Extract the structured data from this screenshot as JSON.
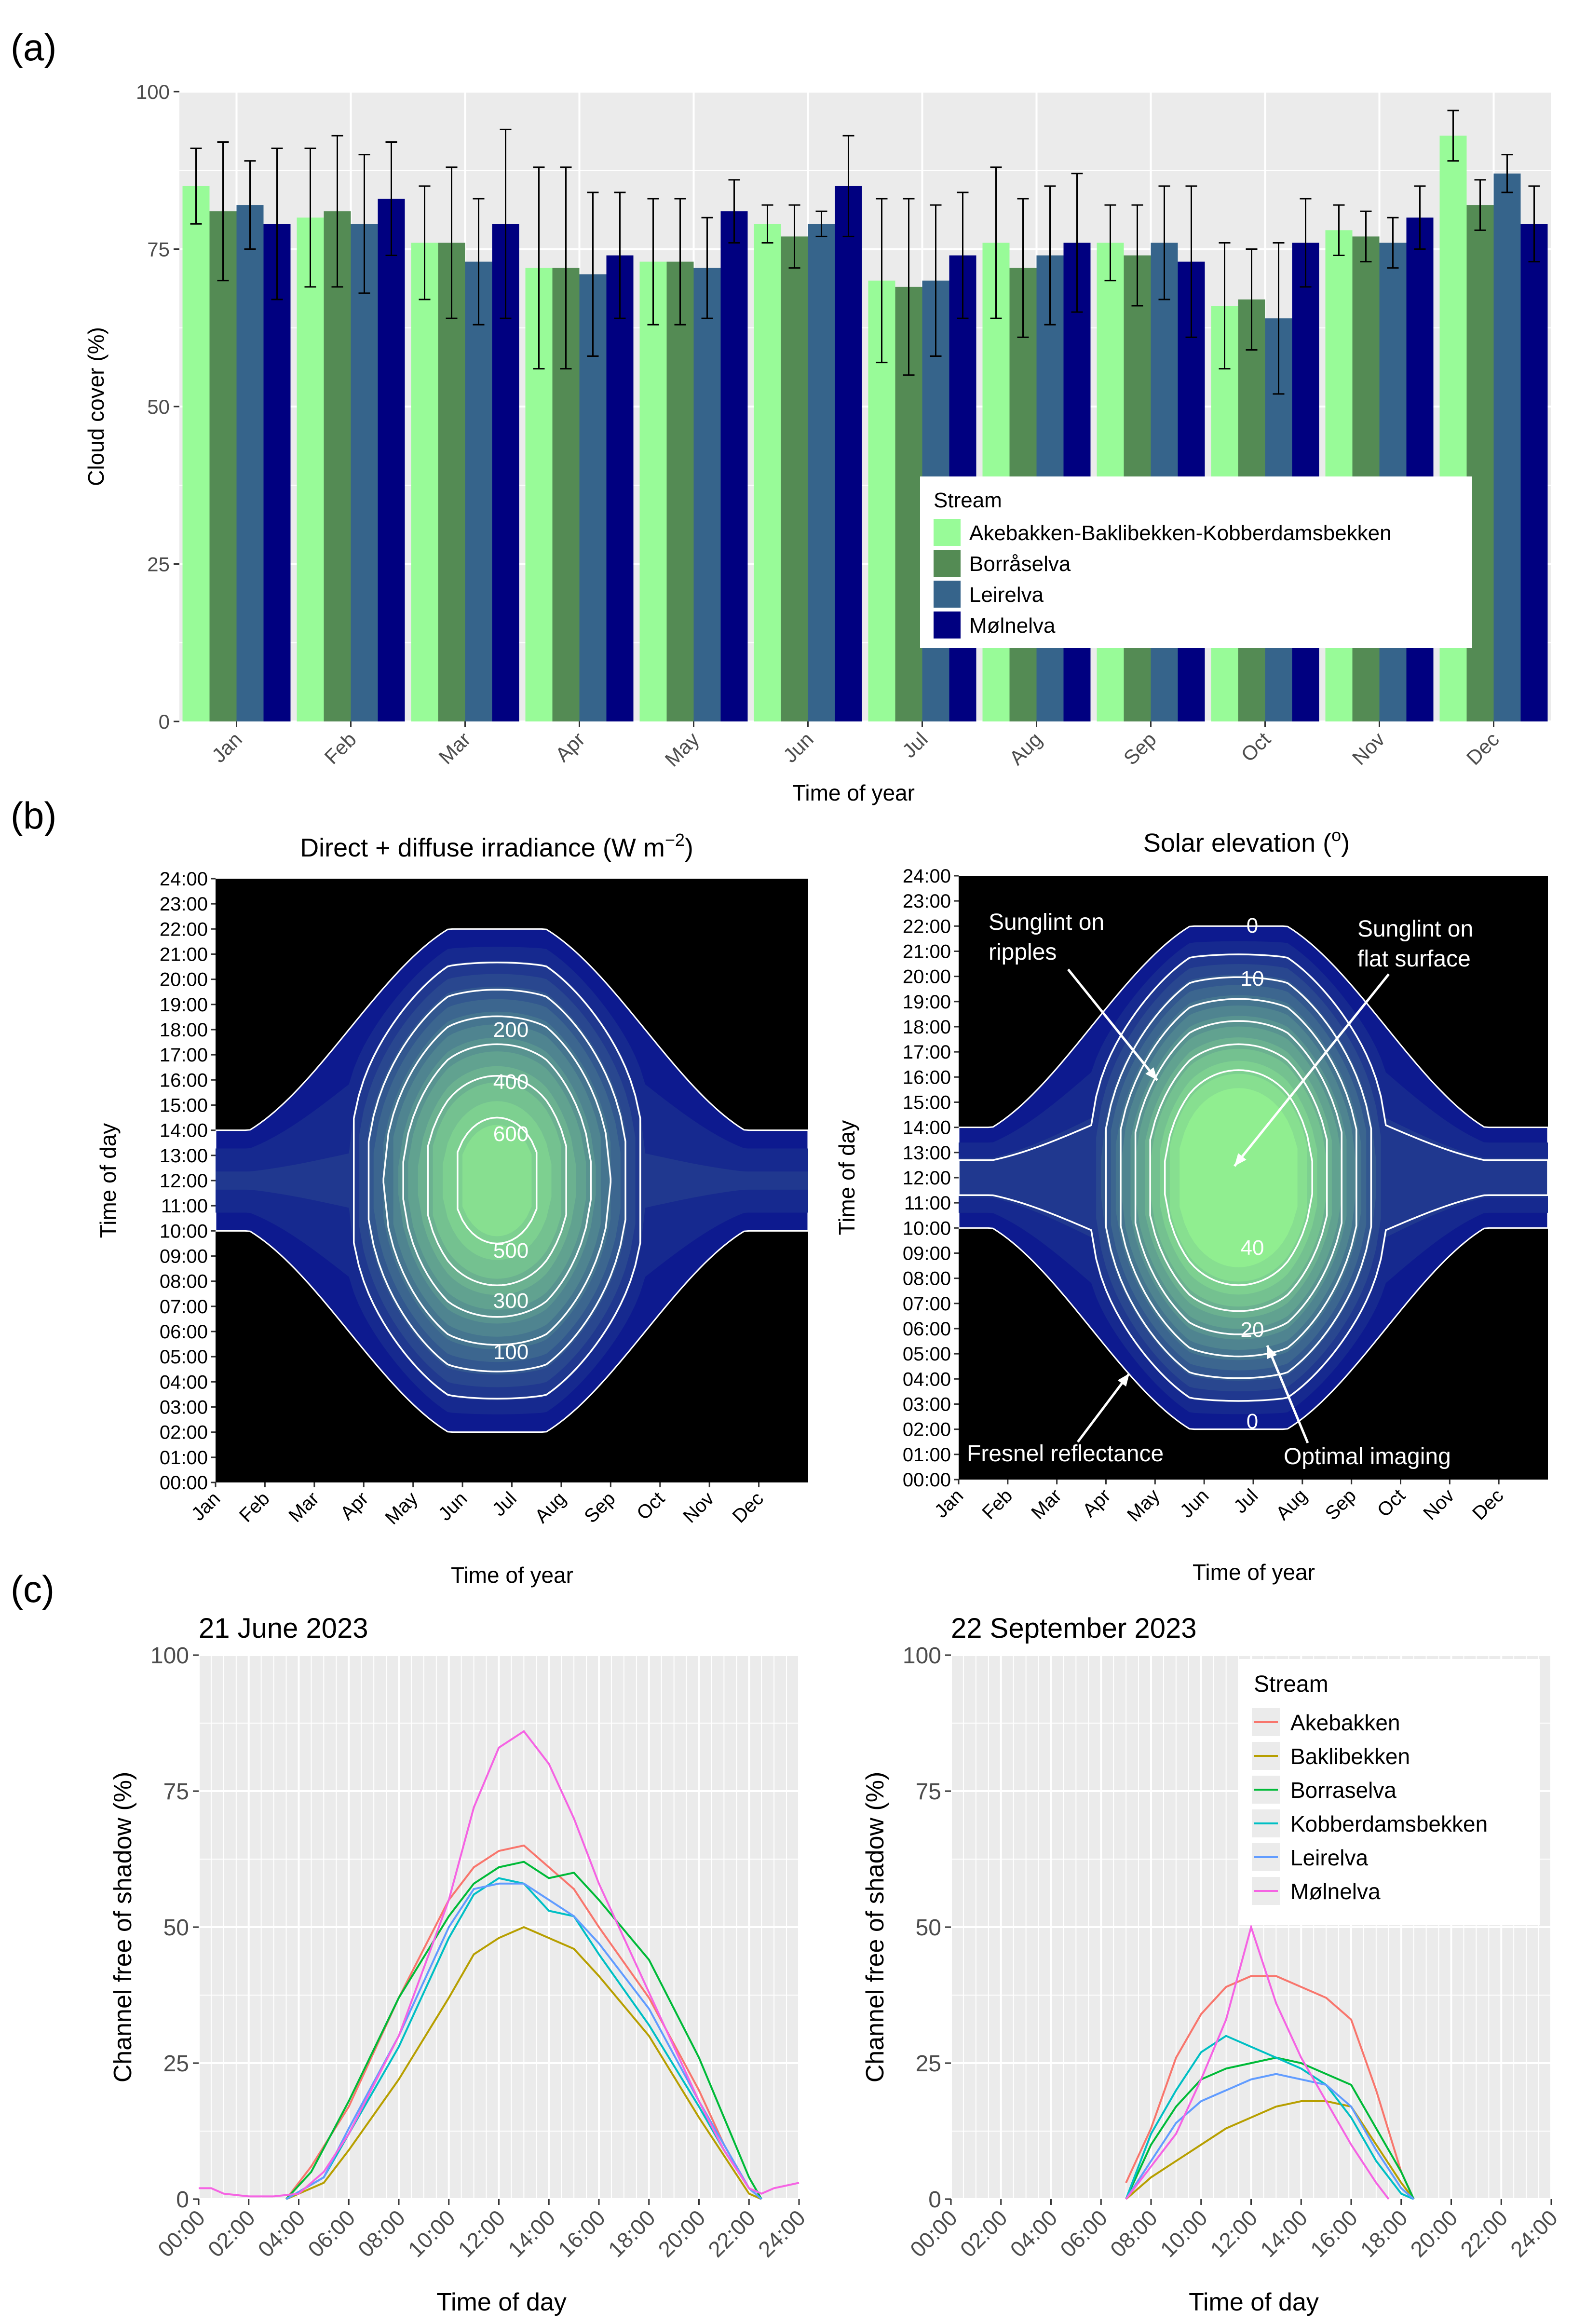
{
  "panel_labels": [
    "(a)",
    "(b)",
    "(c)"
  ],
  "colors": {
    "panel_bg": "#ebebeb",
    "grid": "#ffffff",
    "bar_series": [
      "#98fb98",
      "#548b54",
      "#36648b",
      "#000080"
    ],
    "line_series": [
      "#f8766d",
      "#b79f00",
      "#00ba38",
      "#00bfc4",
      "#619cff",
      "#f564e3"
    ],
    "heat_low": "#0d1a8f",
    "heat_high": "#90ee90"
  },
  "chart_data": [
    {
      "id": "a",
      "type": "bar",
      "title": "",
      "xlabel": "Time of year",
      "ylabel": "Cloud cover (%)",
      "ylim": [
        0,
        100
      ],
      "yticks": [
        "0",
        "25",
        "50",
        "75",
        "100"
      ],
      "categories": [
        "Jan",
        "Feb",
        "Mar",
        "Apr",
        "May",
        "Jun",
        "Jul",
        "Aug",
        "Sep",
        "Oct",
        "Nov",
        "Dec"
      ],
      "legend": {
        "title": "Stream",
        "position": "center-right"
      },
      "series": [
        {
          "name": "Akebakken-Baklibekken-Kobberdamsbekken",
          "values": [
            85,
            80,
            76,
            72,
            73,
            79,
            70,
            76,
            76,
            66,
            78,
            93
          ],
          "err": [
            6,
            11,
            9,
            16,
            10,
            3,
            13,
            12,
            6,
            10,
            4,
            4
          ]
        },
        {
          "name": "Borråselva",
          "values": [
            81,
            81,
            76,
            72,
            73,
            77,
            69,
            72,
            74,
            67,
            77,
            82
          ],
          "err": [
            11,
            12,
            12,
            16,
            10,
            5,
            14,
            11,
            8,
            8,
            4,
            4
          ]
        },
        {
          "name": "Leirelva",
          "values": [
            82,
            79,
            73,
            71,
            72,
            79,
            70,
            74,
            76,
            64,
            76,
            87
          ],
          "err": [
            7,
            11,
            10,
            13,
            8,
            2,
            12,
            11,
            9,
            12,
            4,
            3
          ]
        },
        {
          "name": "Mølnelva",
          "values": [
            79,
            83,
            79,
            74,
            81,
            85,
            74,
            76,
            73,
            76,
            80,
            79
          ],
          "err": [
            12,
            9,
            15,
            10,
            5,
            8,
            10,
            11,
            12,
            7,
            5,
            6
          ]
        }
      ]
    },
    {
      "id": "b1",
      "type": "heatmap",
      "title": "Direct + diffuse irradiance (W m",
      "title_sup": "−2",
      "title_end": ")",
      "xlabel": "Time of year",
      "ylabel": "Time of day",
      "x_ticks": [
        "Jan",
        "Feb",
        "Mar",
        "Apr",
        "May",
        "Jun",
        "Jul",
        "Aug",
        "Sep",
        "Oct",
        "Nov",
        "Dec"
      ],
      "y_ticks": [
        "00:00",
        "01:00",
        "02:00",
        "03:00",
        "04:00",
        "05:00",
        "06:00",
        "07:00",
        "08:00",
        "09:00",
        "10:00",
        "11:00",
        "12:00",
        "13:00",
        "14:00",
        "15:00",
        "16:00",
        "17:00",
        "18:00",
        "19:00",
        "20:00",
        "21:00",
        "22:00",
        "23:00",
        "24:00"
      ],
      "contour_levels": [
        100,
        200,
        300,
        400,
        500,
        600
      ],
      "contour_labels": [
        "200",
        "400",
        "600",
        "500",
        "300",
        "100"
      ],
      "max_value": 650
    },
    {
      "id": "b2",
      "type": "heatmap",
      "title": "Solar elevation (",
      "title_sup": "o",
      "title_end": ")",
      "xlabel": "Time of year",
      "ylabel": "Time of day",
      "x_ticks": [
        "Jan",
        "Feb",
        "Mar",
        "Apr",
        "May",
        "Jun",
        "Jul",
        "Aug",
        "Sep",
        "Oct",
        "Nov",
        "Dec"
      ],
      "y_ticks": [
        "00:00",
        "01:00",
        "02:00",
        "03:00",
        "04:00",
        "05:00",
        "06:00",
        "07:00",
        "08:00",
        "09:00",
        "10:00",
        "11:00",
        "12:00",
        "13:00",
        "14:00",
        "15:00",
        "16:00",
        "17:00",
        "18:00",
        "19:00",
        "20:00",
        "21:00",
        "22:00",
        "23:00",
        "24:00"
      ],
      "contour_levels": [
        0,
        10,
        20,
        30,
        40,
        50
      ],
      "contour_labels": [
        "0",
        "10",
        "40",
        "20",
        "0"
      ],
      "annotations": [
        "Sunglint on",
        "ripples",
        "Sunglint on",
        "flat surface",
        "Fresnel reflectance",
        "Optimal imaging"
      ]
    },
    {
      "id": "c1",
      "type": "line",
      "title": "21 June 2023",
      "xlabel": "Time of day",
      "ylabel": "Channel free of shadow (%)",
      "ylim": [
        0,
        100
      ],
      "yticks": [
        "0",
        "25",
        "50",
        "75",
        "100"
      ],
      "x_ticks": [
        "00:00",
        "02:00",
        "04:00",
        "06:00",
        "08:00",
        "10:00",
        "12:00",
        "14:00",
        "16:00",
        "18:00",
        "20:00",
        "22:00",
        "24:00"
      ],
      "series": [
        {
          "name": "Akebakken",
          "points": [
            [
              3.5,
              0
            ],
            [
              4.5,
              6
            ],
            [
              6,
              17
            ],
            [
              8,
              37
            ],
            [
              10,
              55
            ],
            [
              11,
              61
            ],
            [
              12,
              64
            ],
            [
              13,
              65
            ],
            [
              14,
              61
            ],
            [
              15,
              57
            ],
            [
              16,
              50
            ],
            [
              18,
              37
            ],
            [
              20,
              20
            ],
            [
              21,
              10
            ],
            [
              22,
              2
            ],
            [
              22.5,
              0
            ]
          ]
        },
        {
          "name": "Baklibekken",
          "points": [
            [
              3.5,
              0
            ],
            [
              5,
              3
            ],
            [
              6,
              9
            ],
            [
              8,
              22
            ],
            [
              10,
              37
            ],
            [
              11,
              45
            ],
            [
              12,
              48
            ],
            [
              13,
              50
            ],
            [
              14,
              48
            ],
            [
              15,
              46
            ],
            [
              16,
              41
            ],
            [
              18,
              30
            ],
            [
              20,
              15
            ],
            [
              21,
              8
            ],
            [
              22,
              1
            ],
            [
              22.5,
              0
            ]
          ]
        },
        {
          "name": "Borraselva",
          "points": [
            [
              3.5,
              0
            ],
            [
              4.5,
              5
            ],
            [
              6,
              18
            ],
            [
              8,
              37
            ],
            [
              10,
              52
            ],
            [
              11,
              58
            ],
            [
              12,
              61
            ],
            [
              13,
              62
            ],
            [
              14,
              59
            ],
            [
              15,
              60
            ],
            [
              16,
              55
            ],
            [
              18,
              44
            ],
            [
              20,
              26
            ],
            [
              21,
              15
            ],
            [
              22,
              4
            ],
            [
              22.5,
              0
            ]
          ]
        },
        {
          "name": "Kobberdamsbekken",
          "points": [
            [
              3.5,
              0
            ],
            [
              5,
              4
            ],
            [
              6,
              12
            ],
            [
              8,
              28
            ],
            [
              10,
              48
            ],
            [
              11,
              56
            ],
            [
              12,
              59
            ],
            [
              13,
              58
            ],
            [
              14,
              53
            ],
            [
              15,
              52
            ],
            [
              16,
              45
            ],
            [
              18,
              32
            ],
            [
              20,
              17
            ],
            [
              21,
              9
            ],
            [
              22,
              2
            ],
            [
              22.5,
              0
            ]
          ]
        },
        {
          "name": "Leirelva",
          "points": [
            [
              3.5,
              0
            ],
            [
              5,
              4
            ],
            [
              6,
              13
            ],
            [
              8,
              30
            ],
            [
              10,
              50
            ],
            [
              11,
              57
            ],
            [
              12,
              58
            ],
            [
              13,
              58
            ],
            [
              14,
              55
            ],
            [
              15,
              52
            ],
            [
              16,
              47
            ],
            [
              18,
              35
            ],
            [
              20,
              18
            ],
            [
              21,
              10
            ],
            [
              22,
              2
            ],
            [
              22.5,
              0
            ]
          ]
        },
        {
          "name": "Mølnelva",
          "points": [
            [
              0,
              2
            ],
            [
              0.5,
              2
            ],
            [
              1,
              1
            ],
            [
              2,
              0.5
            ],
            [
              3,
              0.5
            ],
            [
              4,
              1
            ],
            [
              5,
              5
            ],
            [
              6,
              12
            ],
            [
              8,
              30
            ],
            [
              10,
              55
            ],
            [
              11,
              72
            ],
            [
              12,
              83
            ],
            [
              13,
              86
            ],
            [
              14,
              80
            ],
            [
              15,
              70
            ],
            [
              16,
              58
            ],
            [
              18,
              38
            ],
            [
              20,
              18
            ],
            [
              21,
              9
            ],
            [
              22,
              2
            ],
            [
              22.5,
              1
            ],
            [
              23,
              2
            ],
            [
              24,
              3
            ]
          ]
        }
      ]
    },
    {
      "id": "c2",
      "type": "line",
      "title": "22 September 2023",
      "xlabel": "Time of day",
      "ylabel": "Channel free of shadow (%)",
      "ylim": [
        0,
        100
      ],
      "yticks": [
        "0",
        "25",
        "50",
        "75",
        "100"
      ],
      "x_ticks": [
        "00:00",
        "02:00",
        "04:00",
        "06:00",
        "08:00",
        "10:00",
        "12:00",
        "14:00",
        "16:00",
        "18:00",
        "20:00",
        "22:00",
        "24:00"
      ],
      "legend": {
        "title": "Stream",
        "position": "top-right"
      },
      "series": [
        {
          "name": "Akebakken",
          "points": [
            [
              7,
              3
            ],
            [
              8,
              13
            ],
            [
              9,
              26
            ],
            [
              10,
              34
            ],
            [
              11,
              39
            ],
            [
              12,
              41
            ],
            [
              13,
              41
            ],
            [
              14,
              39
            ],
            [
              15,
              37
            ],
            [
              16,
              33
            ],
            [
              17,
              20
            ],
            [
              18,
              5
            ],
            [
              18.5,
              0
            ]
          ]
        },
        {
          "name": "Baklibekken",
          "points": [
            [
              7,
              0
            ],
            [
              8,
              4
            ],
            [
              9,
              7
            ],
            [
              10,
              10
            ],
            [
              11,
              13
            ],
            [
              12,
              15
            ],
            [
              13,
              17
            ],
            [
              14,
              18
            ],
            [
              15,
              18
            ],
            [
              16,
              17
            ],
            [
              17,
              10
            ],
            [
              18,
              3
            ],
            [
              18.5,
              0
            ]
          ]
        },
        {
          "name": "Borraselva",
          "points": [
            [
              7,
              0
            ],
            [
              8,
              10
            ],
            [
              9,
              17
            ],
            [
              10,
              22
            ],
            [
              11,
              24
            ],
            [
              12,
              25
            ],
            [
              13,
              26
            ],
            [
              14,
              25
            ],
            [
              15,
              23
            ],
            [
              16,
              21
            ],
            [
              17,
              13
            ],
            [
              18,
              5
            ],
            [
              18.5,
              0
            ]
          ]
        },
        {
          "name": "Kobberdamsbekken",
          "points": [
            [
              7,
              0
            ],
            [
              8,
              12
            ],
            [
              9,
              20
            ],
            [
              10,
              27
            ],
            [
              11,
              30
            ],
            [
              12,
              28
            ],
            [
              13,
              26
            ],
            [
              14,
              24
            ],
            [
              15,
              21
            ],
            [
              16,
              15
            ],
            [
              17,
              7
            ],
            [
              18,
              1
            ],
            [
              18.5,
              0
            ]
          ]
        },
        {
          "name": "Leirelva",
          "points": [
            [
              7,
              0
            ],
            [
              8,
              7
            ],
            [
              9,
              14
            ],
            [
              10,
              18
            ],
            [
              11,
              20
            ],
            [
              12,
              22
            ],
            [
              13,
              23
            ],
            [
              14,
              22
            ],
            [
              15,
              21
            ],
            [
              16,
              17
            ],
            [
              17,
              9
            ],
            [
              18,
              2
            ],
            [
              18.5,
              0
            ]
          ]
        },
        {
          "name": "Mølnelva",
          "points": [
            [
              7,
              0
            ],
            [
              8,
              6
            ],
            [
              9,
              12
            ],
            [
              10,
              22
            ],
            [
              11,
              33
            ],
            [
              12,
              50
            ],
            [
              13,
              36
            ],
            [
              14,
              26
            ],
            [
              15,
              18
            ],
            [
              16,
              10
            ],
            [
              17,
              3
            ],
            [
              17.5,
              0
            ]
          ]
        }
      ]
    }
  ]
}
